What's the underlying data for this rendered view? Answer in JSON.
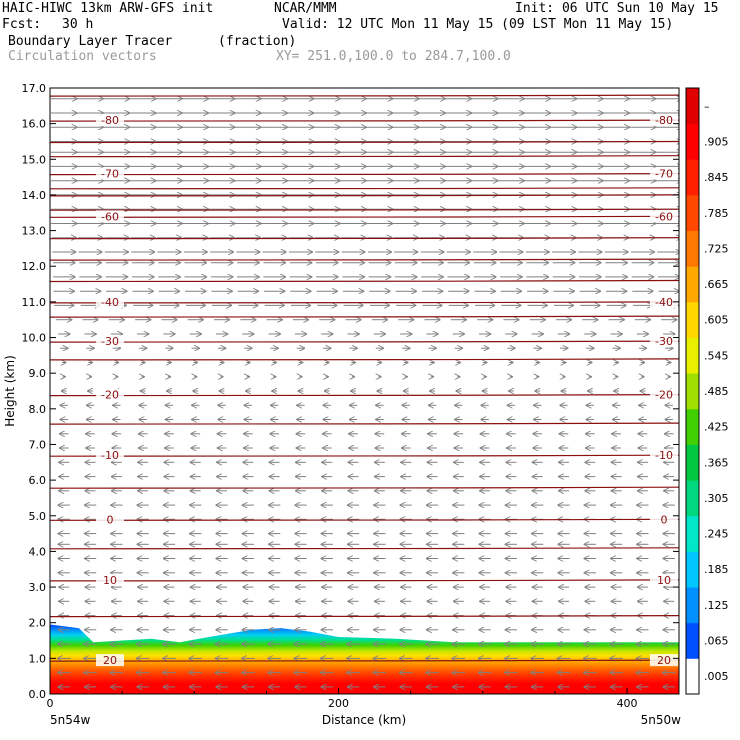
{
  "header": {
    "model": "HAIC-HIWC 13km ARW-GFS init",
    "org": "NCAR/MMM",
    "init": "Init: 06 UTC Sun 10 May 15",
    "fcst_label": "Fcst:",
    "fcst_value": "30 h",
    "valid": "Valid: 12 UTC Mon 11 May 15 (09 LST Mon 11 May 15)",
    "field": "Boundary Layer Tracer",
    "field_units": "(fraction)",
    "overlay": "Circulation vectors",
    "xy_range": "XY= 251.0,100.0 to 284.7,100.0"
  },
  "colors": {
    "contour": "#8b1010",
    "vector": "#808080"
  },
  "chart_data": {
    "type": "heatmap",
    "xlabel": "Distance (km)",
    "ylabel": "Height (km)",
    "xlim": [
      0,
      436
    ],
    "ylim": [
      0,
      17
    ],
    "x_ticks": [
      0,
      200,
      400
    ],
    "x_tick_labels": [
      "0",
      "200",
      "400"
    ],
    "y_ticks": [
      0,
      1,
      2,
      3,
      4,
      5,
      6,
      7,
      8,
      9,
      10,
      11,
      12,
      13,
      14,
      15,
      16,
      17
    ],
    "y_tick_labels": [
      "0.0",
      "1.0",
      "2.0",
      "3.0",
      "4.0",
      "5.0",
      "6.0",
      "7.0",
      "8.0",
      "9.0",
      "10.0",
      "11.0",
      "12.0",
      "13.0",
      "14.0",
      "15.0",
      "16.0",
      "17.0"
    ],
    "x_end_labels": [
      "5n54w",
      "5n50w"
    ],
    "tracer_top_km": [
      [
        0,
        1.95
      ],
      [
        20,
        1.85
      ],
      [
        30,
        1.45
      ],
      [
        50,
        1.5
      ],
      [
        70,
        1.55
      ],
      [
        90,
        1.45
      ],
      [
        110,
        1.6
      ],
      [
        140,
        1.8
      ],
      [
        160,
        1.85
      ],
      [
        180,
        1.75
      ],
      [
        200,
        1.6
      ],
      [
        240,
        1.55
      ],
      [
        280,
        1.45
      ],
      [
        320,
        1.45
      ],
      [
        360,
        1.45
      ],
      [
        400,
        1.45
      ],
      [
        436,
        1.45
      ]
    ],
    "colorbar": {
      "labels": [
        ".005",
        ".065",
        ".125",
        ".185",
        ".245",
        ".305",
        ".365",
        ".425",
        ".485",
        ".545",
        ".605",
        ".665",
        ".725",
        ".785",
        ".845",
        ".905",
        "–"
      ],
      "colors": [
        "#ffffff",
        "#0050ff",
        "#0090ff",
        "#00c8ff",
        "#00e8c8",
        "#00d880",
        "#00c840",
        "#40d000",
        "#a0e000",
        "#e8f000",
        "#ffd800",
        "#ffa800",
        "#ff7800",
        "#ff4800",
        "#ff2000",
        "#ff0000",
        "#e00000"
      ]
    },
    "contours": [
      {
        "label": "-80",
        "height_km": 16.1
      },
      {
        "label": "-70",
        "height_km": 14.6
      },
      {
        "label": "-60",
        "height_km": 13.4
      },
      {
        "label": "-40",
        "height_km": 11.0
      },
      {
        "label": "-30",
        "height_km": 9.9
      },
      {
        "label": "-20",
        "height_km": 8.4
      },
      {
        "label": "-10",
        "height_km": 6.7
      },
      {
        "label": "0",
        "height_km": 4.9
      },
      {
        "label": "10",
        "height_km": 3.2
      },
      {
        "label": "20",
        "height_km": 0.95
      }
    ],
    "contour_extra_heights_km": [
      16.8,
      15.5,
      15.1,
      14.2,
      14.0,
      13.6,
      12.8,
      12.2,
      11.6,
      10.6,
      9.4,
      7.6,
      5.8,
      4.1,
      2.2
    ],
    "wind_vectors": [
      {
        "height_km": 16.7,
        "u": 1.0
      },
      {
        "height_km": 16.3,
        "u": 1.0
      },
      {
        "height_km": 15.9,
        "u": 1.0
      },
      {
        "height_km": 15.5,
        "u": 1.0
      },
      {
        "height_km": 15.2,
        "u": 1.0
      },
      {
        "height_km": 14.8,
        "u": 1.0
      },
      {
        "height_km": 14.4,
        "u": 1.0
      },
      {
        "height_km": 14.0,
        "u": 1.0
      },
      {
        "height_km": 13.6,
        "u": 1.0
      },
      {
        "height_km": 13.2,
        "u": 1.0
      },
      {
        "height_km": 12.8,
        "u": 0.95
      },
      {
        "height_km": 12.4,
        "u": 0.9
      },
      {
        "height_km": 12.1,
        "u": 0.85
      },
      {
        "height_km": 11.7,
        "u": 0.85
      },
      {
        "height_km": 11.3,
        "u": 0.8
      },
      {
        "height_km": 10.9,
        "u": 0.75
      },
      {
        "height_km": 10.5,
        "u": 0.6
      },
      {
        "height_km": 10.1,
        "u": 0.45
      },
      {
        "height_km": 9.7,
        "u": 0.3
      },
      {
        "height_km": 9.3,
        "u": 0.15
      },
      {
        "height_km": 8.9,
        "u": 0.1
      },
      {
        "height_km": 8.5,
        "u": -0.2
      },
      {
        "height_km": 8.1,
        "u": -0.3
      },
      {
        "height_km": 7.7,
        "u": -0.3
      },
      {
        "height_km": 7.3,
        "u": -0.35
      },
      {
        "height_km": 6.9,
        "u": -0.35
      },
      {
        "height_km": 6.5,
        "u": -0.4
      },
      {
        "height_km": 6.1,
        "u": -0.4
      },
      {
        "height_km": 5.7,
        "u": -0.4
      },
      {
        "height_km": 5.3,
        "u": -0.45
      },
      {
        "height_km": 4.9,
        "u": -0.45
      },
      {
        "height_km": 4.5,
        "u": -0.45
      },
      {
        "height_km": 4.2,
        "u": -0.45
      },
      {
        "height_km": 3.8,
        "u": -0.45
      },
      {
        "height_km": 3.4,
        "u": -0.45
      },
      {
        "height_km": 3.0,
        "u": -0.4
      },
      {
        "height_km": 2.6,
        "u": -0.4
      },
      {
        "height_km": 2.2,
        "u": -0.4
      },
      {
        "height_km": 1.8,
        "u": -0.45
      },
      {
        "height_km": 1.4,
        "u": -0.5
      },
      {
        "height_km": 1.0,
        "u": -0.5
      },
      {
        "height_km": 0.6,
        "u": -0.5
      },
      {
        "height_km": 0.2,
        "u": -0.45
      }
    ]
  }
}
